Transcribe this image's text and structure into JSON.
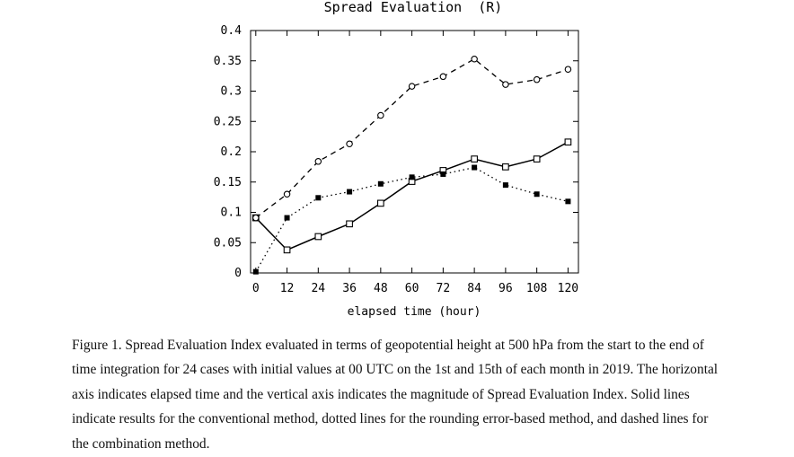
{
  "chart_data": {
    "type": "line",
    "title": "Spread Evaluation  (R)",
    "xlabel": "elapsed time (hour)",
    "ylabel": "",
    "x": [
      0,
      12,
      24,
      36,
      48,
      60,
      72,
      84,
      96,
      108,
      120
    ],
    "x_tick_labels": [
      "0",
      "12",
      "24",
      "36",
      "48",
      "60",
      "72",
      "84",
      "96",
      "108",
      "120"
    ],
    "y_tick_labels": [
      "0",
      "0.05",
      "0.1",
      "0.15",
      "0.2",
      "0.25",
      "0.3",
      "0.35",
      "0.4"
    ],
    "xlim": [
      -2,
      124
    ],
    "ylim": [
      0,
      0.4
    ],
    "grid": false,
    "series": [
      {
        "style": "solid",
        "marker": "open-square",
        "color": "#000000",
        "values": [
          0.091,
          0.038,
          0.06,
          0.081,
          0.115,
          0.151,
          0.169,
          0.188,
          0.175,
          0.188,
          0.216
        ]
      },
      {
        "style": "dotted",
        "marker": "filled-square",
        "color": "#000000",
        "values": [
          0.002,
          0.091,
          0.124,
          0.134,
          0.147,
          0.158,
          0.163,
          0.174,
          0.145,
          0.13,
          0.118
        ]
      },
      {
        "style": "dashed",
        "marker": "open-circle",
        "color": "#000000",
        "values": [
          0.091,
          0.13,
          0.184,
          0.213,
          0.26,
          0.308,
          0.324,
          0.353,
          0.311,
          0.319,
          0.336
        ]
      }
    ]
  },
  "caption": "Figure 1. Spread Evaluation Index evaluated in terms of geopotential height at 500 hPa from the start to the end of time integration for 24 cases with initial values at 00 UTC on the 1st and 15th of each month in 2019. The horizontal axis indicates elapsed time and the vertical axis indicates the magnitude of Spread Evaluation Index. Solid lines indicate results for the conventional method, dotted lines for the rounding error-based method, and dashed lines for the combination method."
}
